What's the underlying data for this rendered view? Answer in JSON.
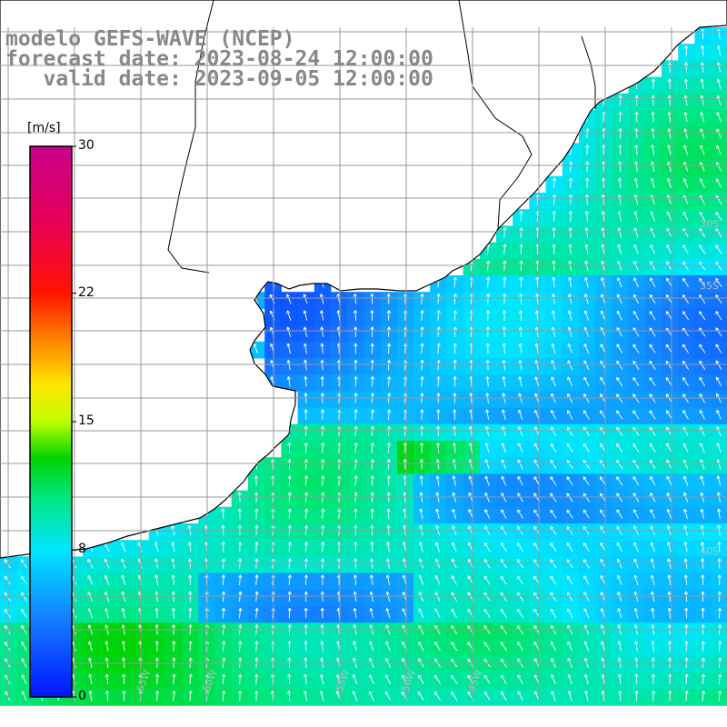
{
  "header": {
    "model_line": "modelo GEFS-WAVE (NCEP)",
    "forecast_line": "forecast date: 2023-08-24 12:00:00",
    "valid_line": "   valid date: 2023-09-05 12:00:00"
  },
  "colorbar": {
    "units": "[m/s]",
    "ticks": [
      {
        "value": 30,
        "label": "30"
      },
      {
        "value": 22,
        "label": "22"
      },
      {
        "value": 15,
        "label": "15"
      },
      {
        "value": 8,
        "label": "8"
      },
      {
        "value": 0,
        "label": "0"
      }
    ],
    "min": 0,
    "max": 30
  },
  "map": {
    "land_color": "#ffffff",
    "grid_color": "#999999",
    "coast_color": "#000000",
    "arrow_color": "#ffffff",
    "lat_labels": [
      "30S",
      "35S",
      "40S"
    ],
    "lon_labels": [
      "65W",
      "60W",
      "55W",
      "50W",
      "45W"
    ]
  }
}
